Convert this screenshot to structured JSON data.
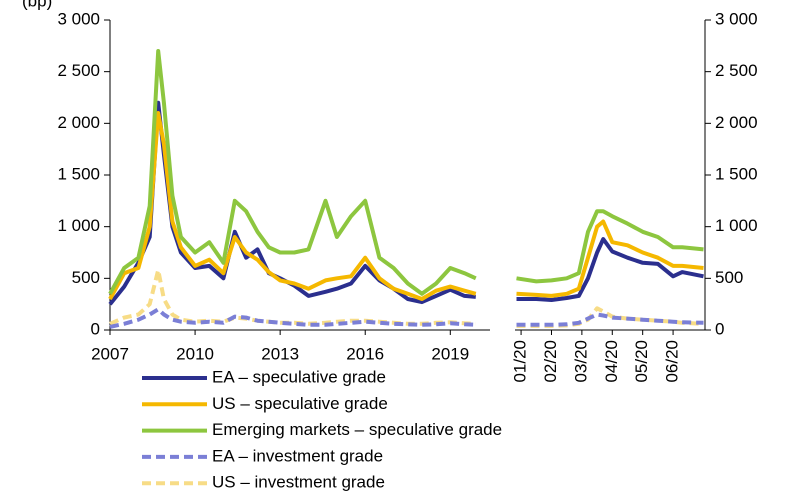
{
  "chart_data": [
    {
      "type": "line",
      "y_label": "(bp)",
      "x": [
        2007,
        2007.5,
        2008,
        2008.4,
        2008.7,
        2008.9,
        2009.2,
        2009.5,
        2010,
        2010.5,
        2011,
        2011.4,
        2011.8,
        2012.2,
        2012.6,
        2013,
        2013.5,
        2014,
        2014.6,
        2015,
        2015.5,
        2016,
        2016.5,
        2017,
        2017.5,
        2018,
        2018.5,
        2019,
        2019.5,
        2019.9
      ],
      "xlim": [
        2007,
        2020.4
      ],
      "xticks": [
        2007,
        2010,
        2013,
        2016,
        2019
      ],
      "ylim": [
        0,
        3000
      ],
      "yticks": [
        0,
        500,
        {
          "value": 1000,
          "label": "1 000"
        },
        {
          "value": 1500,
          "label": "1 500"
        },
        {
          "value": 2000,
          "label": "2 000"
        },
        {
          "value": 2500,
          "label": "2 500"
        },
        {
          "value": 3000,
          "label": "3 000"
        }
      ],
      "series": [
        {
          "name": "EA – speculative grade",
          "color": "#2b2f8e",
          "dash": false,
          "values": [
            250,
            420,
            650,
            900,
            2200,
            1700,
            1000,
            750,
            600,
            620,
            500,
            950,
            700,
            780,
            550,
            500,
            430,
            330,
            370,
            400,
            450,
            620,
            480,
            400,
            300,
            270,
            330,
            390,
            330,
            320
          ]
        },
        {
          "name": "US – speculative grade",
          "color": "#f5b800",
          "dash": false,
          "values": [
            300,
            550,
            600,
            1000,
            2100,
            1800,
            1050,
            800,
            620,
            680,
            550,
            900,
            750,
            680,
            560,
            480,
            450,
            400,
            480,
            500,
            520,
            700,
            500,
            400,
            350,
            300,
            380,
            420,
            380,
            350
          ]
        },
        {
          "name": "Emerging markets – speculative grade",
          "color": "#8dc63f",
          "dash": false,
          "values": [
            350,
            600,
            700,
            1200,
            2700,
            2200,
            1300,
            900,
            750,
            850,
            650,
            1250,
            1150,
            950,
            800,
            750,
            750,
            780,
            1250,
            900,
            1100,
            1250,
            700,
            600,
            450,
            350,
            450,
            600,
            550,
            500
          ]
        },
        {
          "name": "EA – investment grade",
          "color": "#7b7fd6",
          "dash": true,
          "values": [
            30,
            60,
            100,
            150,
            200,
            150,
            100,
            80,
            70,
            80,
            70,
            130,
            120,
            90,
            80,
            70,
            60,
            50,
            50,
            60,
            70,
            80,
            70,
            60,
            55,
            50,
            55,
            65,
            55,
            50
          ]
        },
        {
          "name": "US – investment grade",
          "color": "#f7dc86",
          "dash": true,
          "values": [
            60,
            120,
            150,
            250,
            580,
            300,
            150,
            100,
            80,
            90,
            80,
            120,
            110,
            90,
            80,
            70,
            70,
            60,
            70,
            80,
            90,
            90,
            80,
            70,
            60,
            60,
            70,
            75,
            65,
            60
          ]
        }
      ]
    },
    {
      "type": "line",
      "x": [
        0.85,
        1.5,
        2.0,
        2.5,
        2.9,
        3.2,
        3.5,
        3.7,
        4.0,
        4.5,
        5.0,
        5.5,
        6.0,
        6.3,
        7.0
      ],
      "xlim": [
        0.8,
        7.05
      ],
      "xticks": [
        {
          "value": 1,
          "label": "01/20"
        },
        {
          "value": 2,
          "label": "02/20"
        },
        {
          "value": 3,
          "label": "03/20"
        },
        {
          "value": 4,
          "label": "04/20"
        },
        {
          "value": 5,
          "label": "05/20"
        },
        {
          "value": 6,
          "label": "06/20"
        }
      ],
      "ylim": [
        0,
        3000
      ],
      "yticks": [
        0,
        500,
        {
          "value": 1000,
          "label": "1 000"
        },
        {
          "value": 1500,
          "label": "1 500"
        },
        {
          "value": 2000,
          "label": "2 000"
        },
        {
          "value": 2500,
          "label": "2 500"
        },
        {
          "value": 3000,
          "label": "3 000"
        }
      ],
      "series": [
        {
          "color": "#2b2f8e",
          "dash": false,
          "values": [
            300,
            300,
            290,
            310,
            330,
            500,
            750,
            880,
            760,
            700,
            650,
            640,
            520,
            560,
            520
          ]
        },
        {
          "color": "#f5b800",
          "dash": false,
          "values": [
            350,
            340,
            330,
            350,
            400,
            700,
            1000,
            1050,
            850,
            820,
            750,
            700,
            620,
            620,
            600
          ]
        },
        {
          "color": "#8dc63f",
          "dash": false,
          "values": [
            500,
            470,
            480,
            500,
            550,
            950,
            1150,
            1150,
            1100,
            1030,
            950,
            900,
            800,
            800,
            780
          ]
        },
        {
          "color": "#7b7fd6",
          "dash": true,
          "values": [
            50,
            50,
            50,
            55,
            70,
            110,
            150,
            140,
            120,
            110,
            100,
            90,
            80,
            75,
            70
          ]
        },
        {
          "color": "#f7dc86",
          "dash": true,
          "values": [
            40,
            40,
            40,
            45,
            60,
            100,
            210,
            180,
            130,
            110,
            100,
            90,
            80,
            70,
            60
          ]
        }
      ]
    }
  ]
}
